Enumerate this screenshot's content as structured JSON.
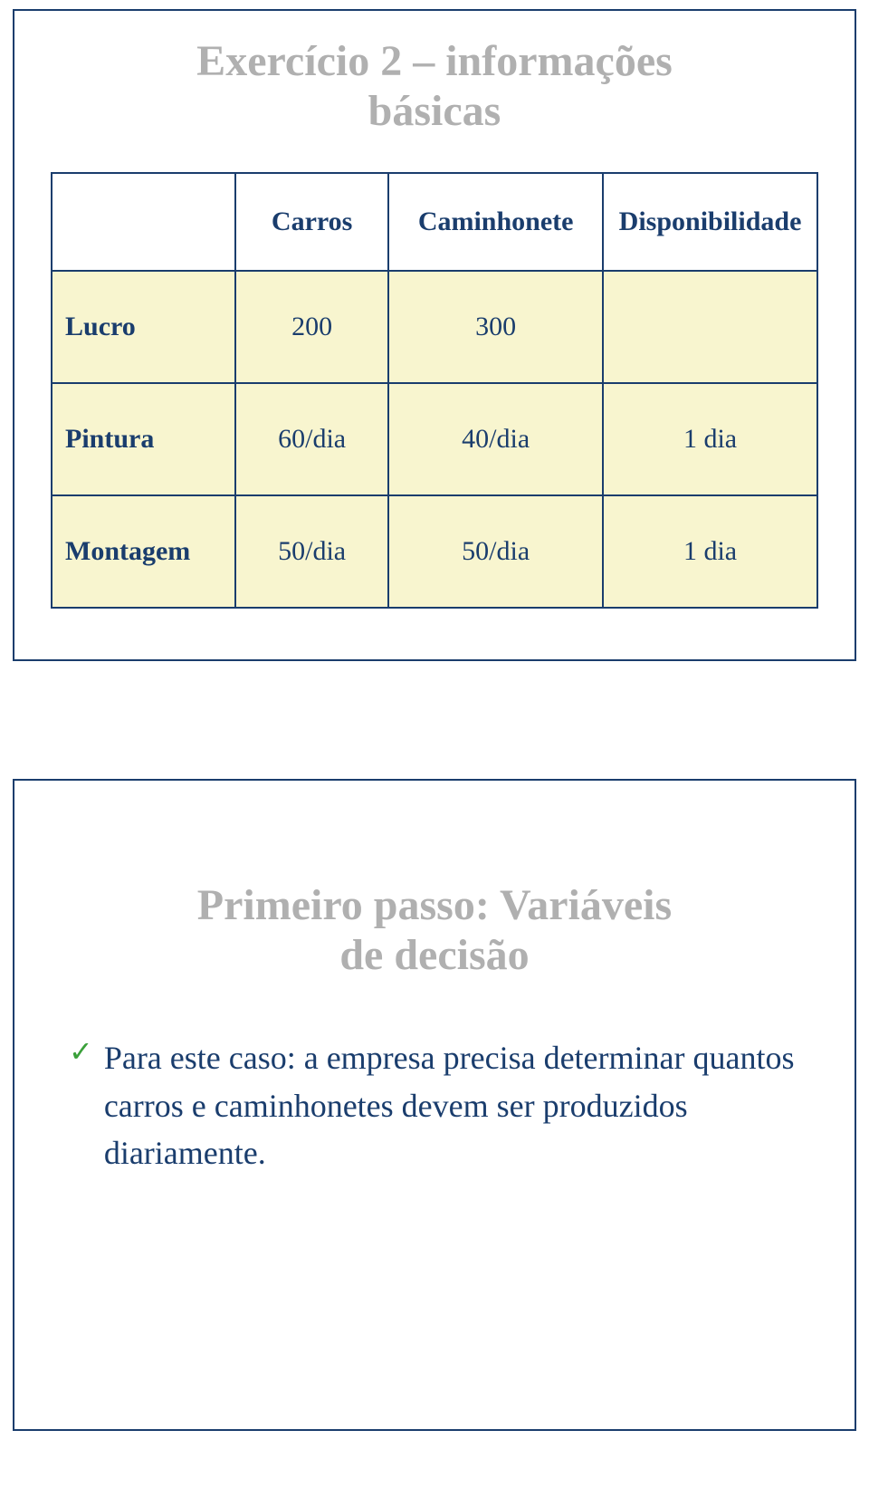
{
  "slide1": {
    "title_line1": "Exercício 2 – informações",
    "title_line2": "básicas",
    "columns": [
      "",
      "Carros",
      "Caminhonete",
      "Disponibilidade"
    ],
    "rows": [
      {
        "label": "Lucro",
        "carros": "200",
        "caminhonete": "300",
        "disp": ""
      },
      {
        "label": "Pintura",
        "carros": "60/dia",
        "caminhonete": "40/dia",
        "disp": "1 dia"
      },
      {
        "label": "Montagem",
        "carros": "50/dia",
        "caminhonete": "50/dia",
        "disp": "1 dia"
      }
    ],
    "colors": {
      "border": "#1a3d6d",
      "cell_bg": "#f8f5cf",
      "header_bg": "#ffffff",
      "text": "#1a3d6d",
      "title": "#b0b0b0"
    },
    "fontsize": {
      "title": 48,
      "cell": 30
    }
  },
  "slide2": {
    "title_line1": "Primeiro passo: Variáveis",
    "title_line2": "de decisão",
    "bullet": {
      "check_color": "#3aa03a",
      "text": "Para este caso: a empresa precisa determinar quantos carros e caminhonetes devem ser produzidos diariamente."
    },
    "colors": {
      "border": "#1a3d6d",
      "title": "#b0b0b0",
      "text": "#1a3d6d"
    },
    "fontsize": {
      "title": 48,
      "body": 36
    }
  }
}
